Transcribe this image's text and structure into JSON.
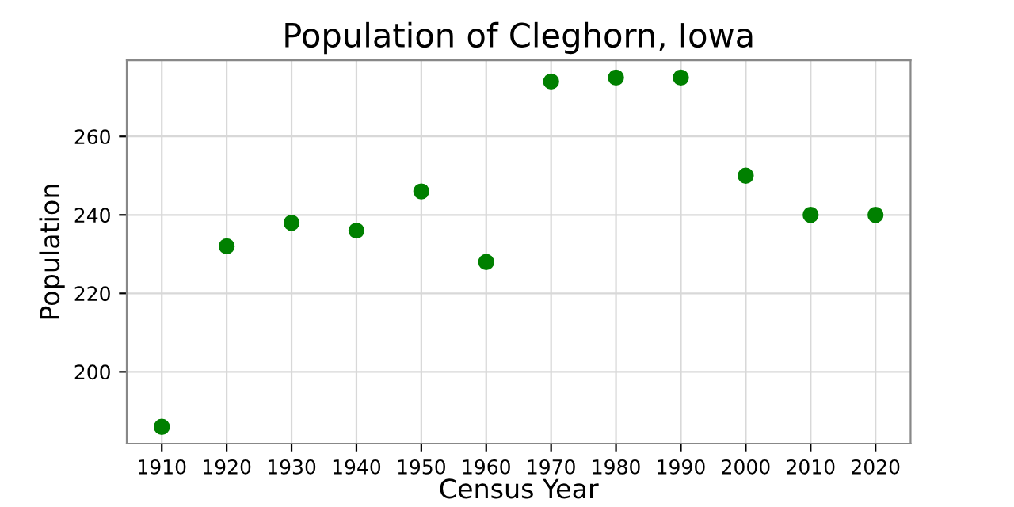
{
  "chart_data": {
    "type": "scatter",
    "title": "Population of Cleghorn, Iowa",
    "xlabel": "Census Year",
    "ylabel": "Population",
    "x": [
      1910,
      1920,
      1930,
      1940,
      1950,
      1960,
      1970,
      1980,
      1990,
      2000,
      2010,
      2020
    ],
    "series": [
      {
        "color": "#008000",
        "values": [
          186,
          232,
          238,
          236,
          246,
          228,
          274,
          275,
          275,
          250,
          240,
          240
        ]
      }
    ],
    "xlim": [
      1904.6,
      2025.4
    ],
    "ylim": [
      181.7,
      279.4
    ],
    "xticks": [
      1910,
      1920,
      1930,
      1940,
      1950,
      1960,
      1970,
      1980,
      1990,
      2000,
      2010,
      2020
    ],
    "yticks": [
      200,
      220,
      240,
      260
    ],
    "grid": true,
    "marker": "circle",
    "legend": false
  }
}
